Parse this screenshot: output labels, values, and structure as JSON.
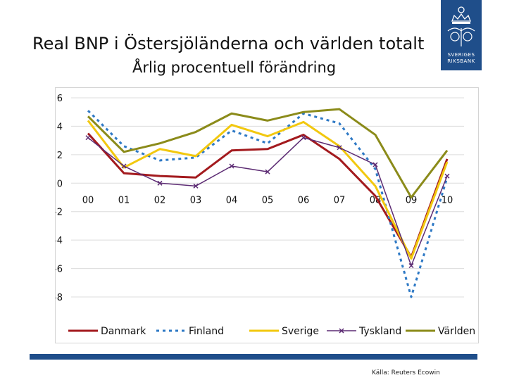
{
  "slide": {
    "title": "Real BNP i Östersjöländerna och världen totalt",
    "subtitle": "Årlig procentuell förändring",
    "source": "Källa: Reuters Ecowin",
    "logo_line1": "SVERIGES",
    "logo_line2": "RIKSBANK",
    "brand_color": "#1f4e8a"
  },
  "chart_data": {
    "type": "line",
    "categories": [
      "00",
      "01",
      "02",
      "03",
      "04",
      "05",
      "06",
      "07",
      "08",
      "09",
      "10"
    ],
    "ylim": [
      -8,
      6
    ],
    "yticks": [
      6,
      4,
      2,
      0,
      -2,
      -4,
      -6,
      -8
    ],
    "ytick_labels": [
      "6",
      "4",
      "2",
      "0",
      "-2",
      "-4",
      "-6",
      "-8"
    ],
    "grid": "horizontal",
    "legend_position": "bottom",
    "series": [
      {
        "name": "Danmark",
        "color": "#a31a1e",
        "style": "solid",
        "marker": "none",
        "values": [
          3.5,
          0.7,
          0.5,
          0.4,
          2.3,
          2.4,
          3.4,
          1.7,
          -0.9,
          -5.2,
          1.7
        ]
      },
      {
        "name": "Finland",
        "color": "#2e79c5",
        "style": "dashed",
        "marker": "none",
        "values": [
          5.1,
          2.6,
          1.6,
          1.8,
          3.7,
          2.8,
          4.9,
          4.2,
          1.0,
          -8.0,
          0.4
        ]
      },
      {
        "name": "Sverige",
        "color": "#f2c80f",
        "style": "solid",
        "marker": "none",
        "values": [
          4.4,
          1.1,
          2.4,
          1.9,
          4.1,
          3.3,
          4.3,
          2.6,
          -0.2,
          -5.3,
          1.5
        ]
      },
      {
        "name": "Tyskland",
        "color": "#5c2b73",
        "style": "solid",
        "marker": "x",
        "values": [
          3.2,
          1.2,
          0.0,
          -0.2,
          1.2,
          0.8,
          3.2,
          2.5,
          1.3,
          -5.8,
          0.5
        ]
      },
      {
        "name": "Världen",
        "color": "#8b8b1a",
        "style": "solid",
        "marker": "none",
        "values": [
          4.7,
          2.2,
          2.8,
          3.6,
          4.9,
          4.4,
          5.0,
          5.2,
          3.4,
          -1.0,
          2.3
        ]
      }
    ]
  }
}
